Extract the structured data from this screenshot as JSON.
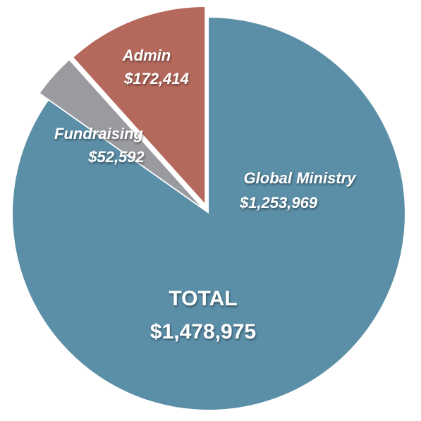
{
  "chart_data": {
    "type": "pie",
    "title": "",
    "total": {
      "name": "TOTAL",
      "value": 1478975,
      "value_label": "$1,478,975"
    },
    "slices": [
      {
        "name": "Global Ministry",
        "value": 1253969,
        "value_label": "$1,253,969",
        "color": "#5b8fa8",
        "exploded": false
      },
      {
        "name": "Fundraising",
        "value": 52592,
        "value_label": "$52,592",
        "color": "#9a9ba0",
        "exploded": true
      },
      {
        "name": "Admin",
        "value": 172414,
        "value_label": "$172,414",
        "color": "#b5695c",
        "exploded": true
      }
    ]
  }
}
